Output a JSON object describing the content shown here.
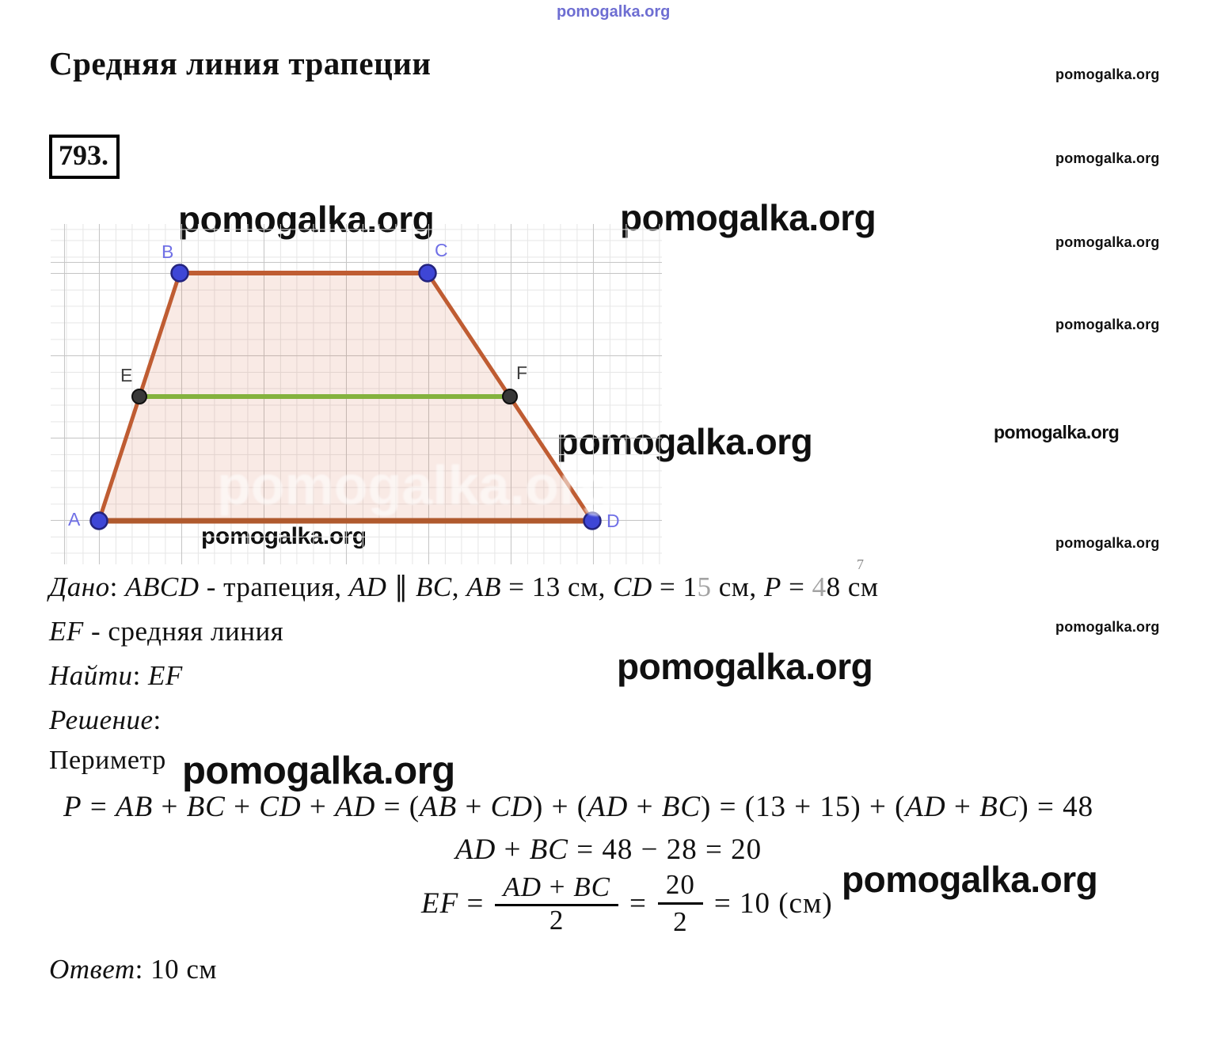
{
  "watermark": {
    "text": "pomogalka.org",
    "black_hex": "#101010",
    "blue_hex": "#4b4bc8"
  },
  "header": {
    "title": "Средняя линия трапеции",
    "problem_number": "793."
  },
  "diagram": {
    "type": "geometry-trapezoid-with-midline",
    "vertex_labels": {
      "A": "A",
      "B": "B",
      "C": "C",
      "D": "D",
      "E": "E",
      "F": "F"
    },
    "colors": {
      "side_stroke": "#bf5c32",
      "base_stroke": "#b05a2e",
      "fill": "rgba(205,95,55,0.13)",
      "midline": "#84b23e",
      "vertex_fill": "#3e46d6",
      "vertex_stroke": "#23237e",
      "midpoint_fill": "#383838",
      "vertex_label_color": "#7070e6",
      "midpoint_label_color": "#3f3f3f",
      "grid_minor": "#e6e6e6",
      "grid_major": "#c6c6c6"
    }
  },
  "artifact_superscript": "7",
  "solution": {
    "given_line1": [
      {
        "t": "Дано",
        "st": "it"
      },
      {
        "t": ": ",
        "st": "up"
      },
      {
        "t": "ABCD",
        "st": "it"
      },
      {
        "t": " - трапеция, ",
        "st": "up"
      },
      {
        "t": "AD",
        "st": "it"
      },
      {
        "t": " ∥ ",
        "st": "up"
      },
      {
        "t": "BC",
        "st": "it"
      },
      {
        "t": ", ",
        "st": "up"
      },
      {
        "t": "AB",
        "st": "it"
      },
      {
        "t": " = 13 см, ",
        "st": "up"
      },
      {
        "t": "CD",
        "st": "it"
      },
      {
        "t": " = 1",
        "st": "up"
      },
      {
        "t": "5",
        "st": "gray"
      },
      {
        "t": " см, ",
        "st": "up"
      },
      {
        "t": "P",
        "st": "it"
      },
      {
        "t": " = ",
        "st": "up"
      },
      {
        "t": "4",
        "st": "gray"
      },
      {
        "t": "8 см",
        "st": "up"
      }
    ],
    "given_line2": [
      {
        "t": "EF",
        "st": "it"
      },
      {
        "t": " - средняя линия",
        "st": "up"
      }
    ],
    "find_line": [
      {
        "t": "Найти",
        "st": "it"
      },
      {
        "t": ": ",
        "st": "up"
      },
      {
        "t": "EF",
        "st": "it"
      }
    ],
    "solution_label": [
      {
        "t": "Решение",
        "st": "it"
      },
      {
        "t": ":",
        "st": "up"
      }
    ],
    "perimeter_word": "Периметр",
    "formula1": [
      {
        "t": "P",
        "st": "it"
      },
      {
        "t": " = ",
        "st": "up"
      },
      {
        "t": "AB",
        "st": "it"
      },
      {
        "t": " + ",
        "st": "up"
      },
      {
        "t": "BC",
        "st": "it"
      },
      {
        "t": " + ",
        "st": "up"
      },
      {
        "t": "CD",
        "st": "it"
      },
      {
        "t": " + ",
        "st": "up"
      },
      {
        "t": "AD",
        "st": "it"
      },
      {
        "t": " = (",
        "st": "up"
      },
      {
        "t": "AB",
        "st": "it"
      },
      {
        "t": " + ",
        "st": "up"
      },
      {
        "t": "CD",
        "st": "it"
      },
      {
        "t": ") + (",
        "st": "up"
      },
      {
        "t": "AD",
        "st": "it"
      },
      {
        "t": " + ",
        "st": "up"
      },
      {
        "t": "BC",
        "st": "it"
      },
      {
        "t": ") = (13 + 15) + (",
        "st": "up"
      },
      {
        "t": "AD",
        "st": "it"
      },
      {
        "t": " + ",
        "st": "up"
      },
      {
        "t": "BC",
        "st": "it"
      },
      {
        "t": ") = 48",
        "st": "up"
      }
    ],
    "formula2": [
      {
        "t": "AD",
        "st": "it"
      },
      {
        "t": " + ",
        "st": "up"
      },
      {
        "t": "BC",
        "st": "it"
      },
      {
        "t": " = 48 − 28 = 20",
        "st": "up"
      }
    ],
    "formula3": {
      "lead": [
        {
          "t": "EF",
          "st": "it"
        },
        {
          "t": " =",
          "st": "up"
        }
      ],
      "frac1_num": [
        {
          "t": "AD",
          "st": "it"
        },
        {
          "t": " + ",
          "st": "up"
        },
        {
          "t": "BC",
          "st": "it"
        }
      ],
      "frac1_den": "2",
      "equals": "=",
      "frac2_num": "20",
      "frac2_den": "2",
      "tail": "= 10 (см)"
    },
    "answer_line": [
      {
        "t": "Ответ",
        "st": "it"
      },
      {
        "t": ": 10 см",
        "st": "up"
      }
    ]
  }
}
